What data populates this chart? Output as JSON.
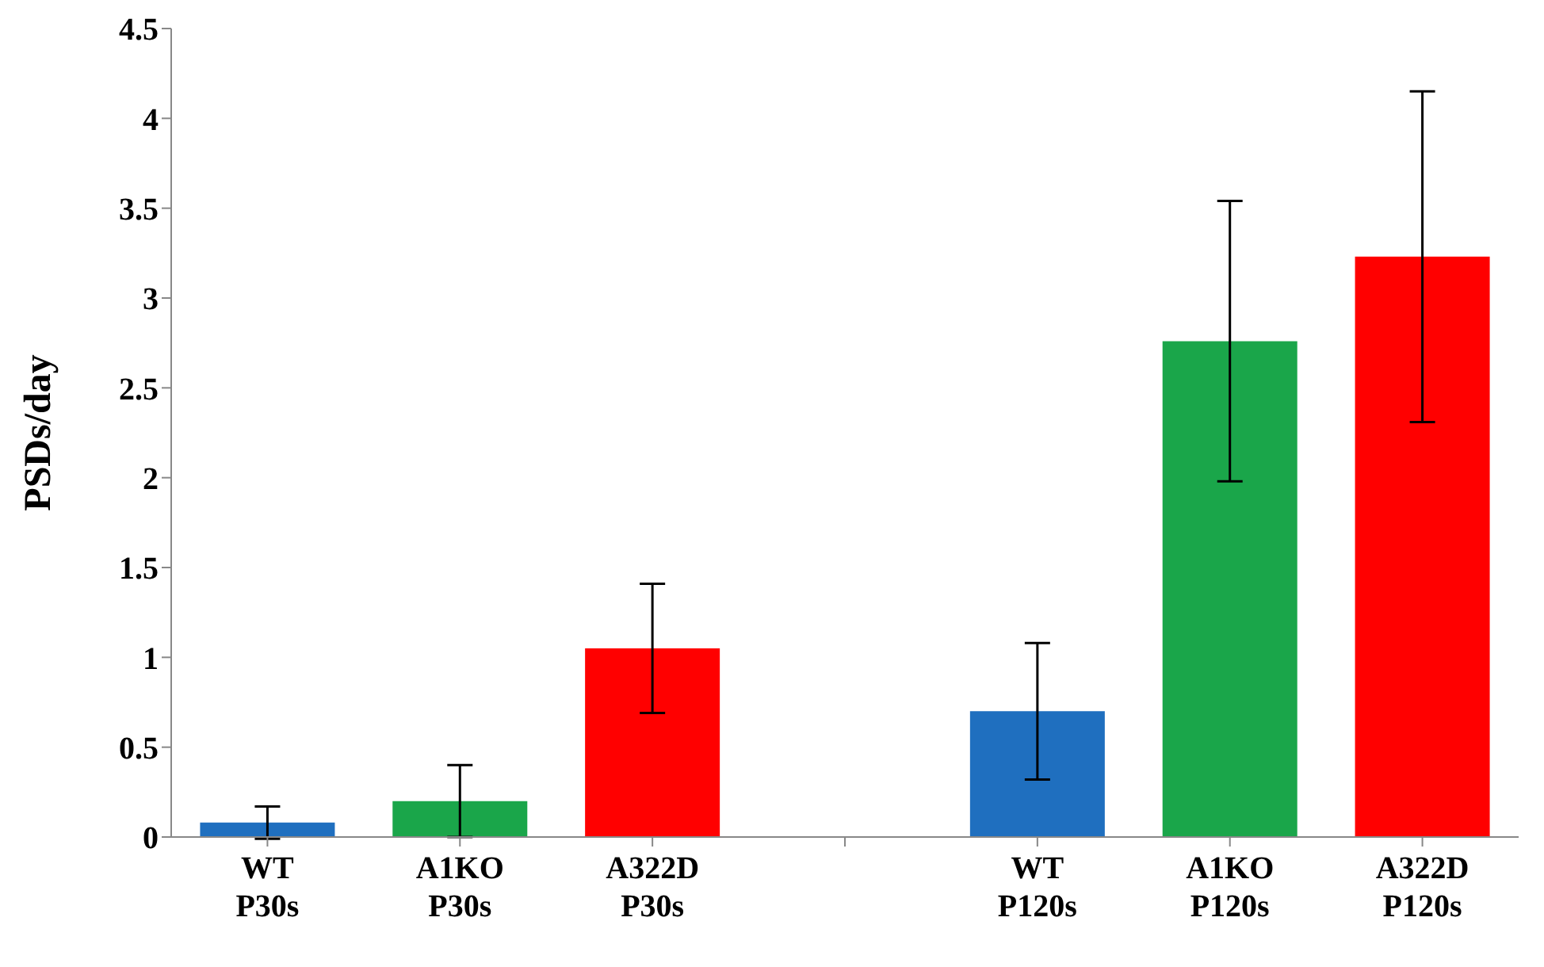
{
  "chart_data": {
    "type": "bar",
    "ylabel": "PSDs/day",
    "categories": [
      "WT\nP30s",
      "A1KO\nP30s",
      "A322D\nP30s",
      null,
      "WT\nP120s",
      "A1KO\nP120s",
      "A322D\nP120s"
    ],
    "values": [
      0.08,
      0.2,
      1.05,
      null,
      0.7,
      2.76,
      3.23
    ],
    "errors": [
      0.09,
      0.2,
      0.36,
      null,
      0.38,
      0.78,
      0.92
    ],
    "colors": [
      "#1f6fbf",
      "#1aa64a",
      "#ff0000",
      null,
      "#1f6fbf",
      "#1aa64a",
      "#ff0000"
    ],
    "ylim": [
      0,
      4.5
    ],
    "yticks": [
      0,
      0.5,
      1,
      1.5,
      2,
      2.5,
      3,
      3.5,
      4,
      4.5
    ],
    "grid": false
  }
}
